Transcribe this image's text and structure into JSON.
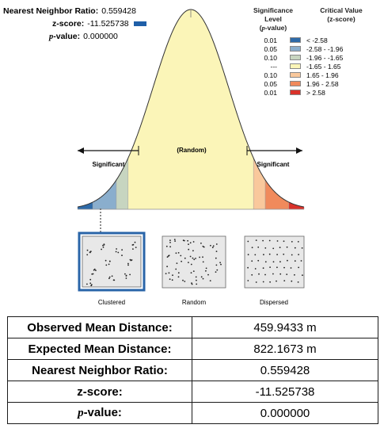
{
  "stats": {
    "ratio_label": "Nearest Neighbor Ratio:",
    "ratio_value": "0.559428",
    "z_label": "z-score:",
    "z_value": "-11.525738",
    "p_letter": "p",
    "p_label_suffix": "-value:",
    "p_value": "0.000000",
    "marker_color": "#1f5fa8"
  },
  "legend": {
    "header_level": "Significance Level",
    "header_level_sub_letter": "p",
    "header_level_sub_suffix": "-value)",
    "header_level_sub_prefix": "(",
    "header_critical": "Critical Value",
    "header_critical_sub": "(z-score)",
    "rows": [
      {
        "level": "0.01",
        "value": "< -2.58",
        "color": "#2e6aa8"
      },
      {
        "level": "0.05",
        "value": "-2.58 - -1.96",
        "color": "#8aaecd"
      },
      {
        "level": "0.10",
        "value": "-1.96 - -1.65",
        "color": "#c7d5c0"
      },
      {
        "level": "---",
        "value": "-1.65 - 1.65",
        "color": "#fbf5b8"
      },
      {
        "level": "0.10",
        "value": "1.65 - 1.96",
        "color": "#f9c89c"
      },
      {
        "level": "0.05",
        "value": "1.96 - 2.58",
        "color": "#f08a5c"
      },
      {
        "level": "0.01",
        "value": "> 2.58",
        "color": "#d9322a"
      }
    ]
  },
  "curve": {
    "random_label": "(Random)",
    "left_label": "Significant",
    "right_label": "Significant"
  },
  "patterns": {
    "clustered": "Clustered",
    "random": "Random",
    "dispersed": "Dispersed",
    "selected": "clustered",
    "selected_border_color": "#2a65a8"
  },
  "table": {
    "observed_label": "Observed Mean Distance:",
    "observed_value": "459.9433 m",
    "expected_label": "Expected Mean Distance:",
    "expected_value": "822.1673 m",
    "ratio_label": "Nearest Neighbor Ratio:",
    "ratio_value": "0.559428",
    "z_label": "z-score:",
    "z_value": "-11.525738",
    "p_letter": "p",
    "p_label_suffix": "-value:",
    "p_value": "0.000000"
  }
}
